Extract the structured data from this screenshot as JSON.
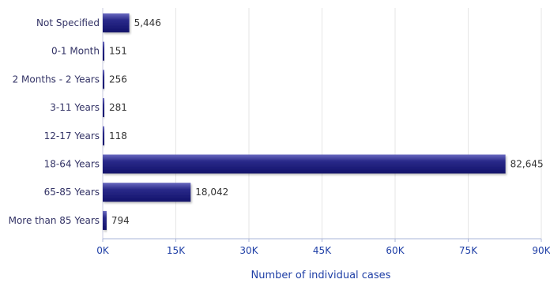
{
  "chart_data": {
    "type": "bar",
    "orientation": "horizontal",
    "categories": [
      "Not Specified",
      "0-1 Month",
      "2 Months - 2 Years",
      "3-11 Years",
      "12-17 Years",
      "18-64 Years",
      "65-85 Years",
      "More than 85 Years"
    ],
    "series": [
      {
        "values": [
          5446,
          151,
          256,
          281,
          118,
          82645,
          18042,
          794
        ],
        "data_labels": [
          "5,446",
          "151",
          "256",
          "281",
          "118",
          "82,645",
          "18,042",
          "794"
        ],
        "color": "#1a1a7a"
      }
    ],
    "xlabel": "Number of individual cases",
    "ylabel": "",
    "xlim": [
      0,
      90000
    ],
    "x_ticks": [
      0,
      15000,
      30000,
      45000,
      60000,
      75000,
      90000
    ],
    "x_tick_labels": [
      "0K",
      "15K",
      "30K",
      "45K",
      "60K",
      "75K",
      "90K"
    ],
    "grid": true,
    "legend": "none",
    "colors": {
      "bar": "#1a1a7a",
      "bar_highlight": "#5a5ab0",
      "axis_text": "#1f3fa6",
      "category_text": "#333366",
      "grid": "#e6e6e6"
    }
  }
}
